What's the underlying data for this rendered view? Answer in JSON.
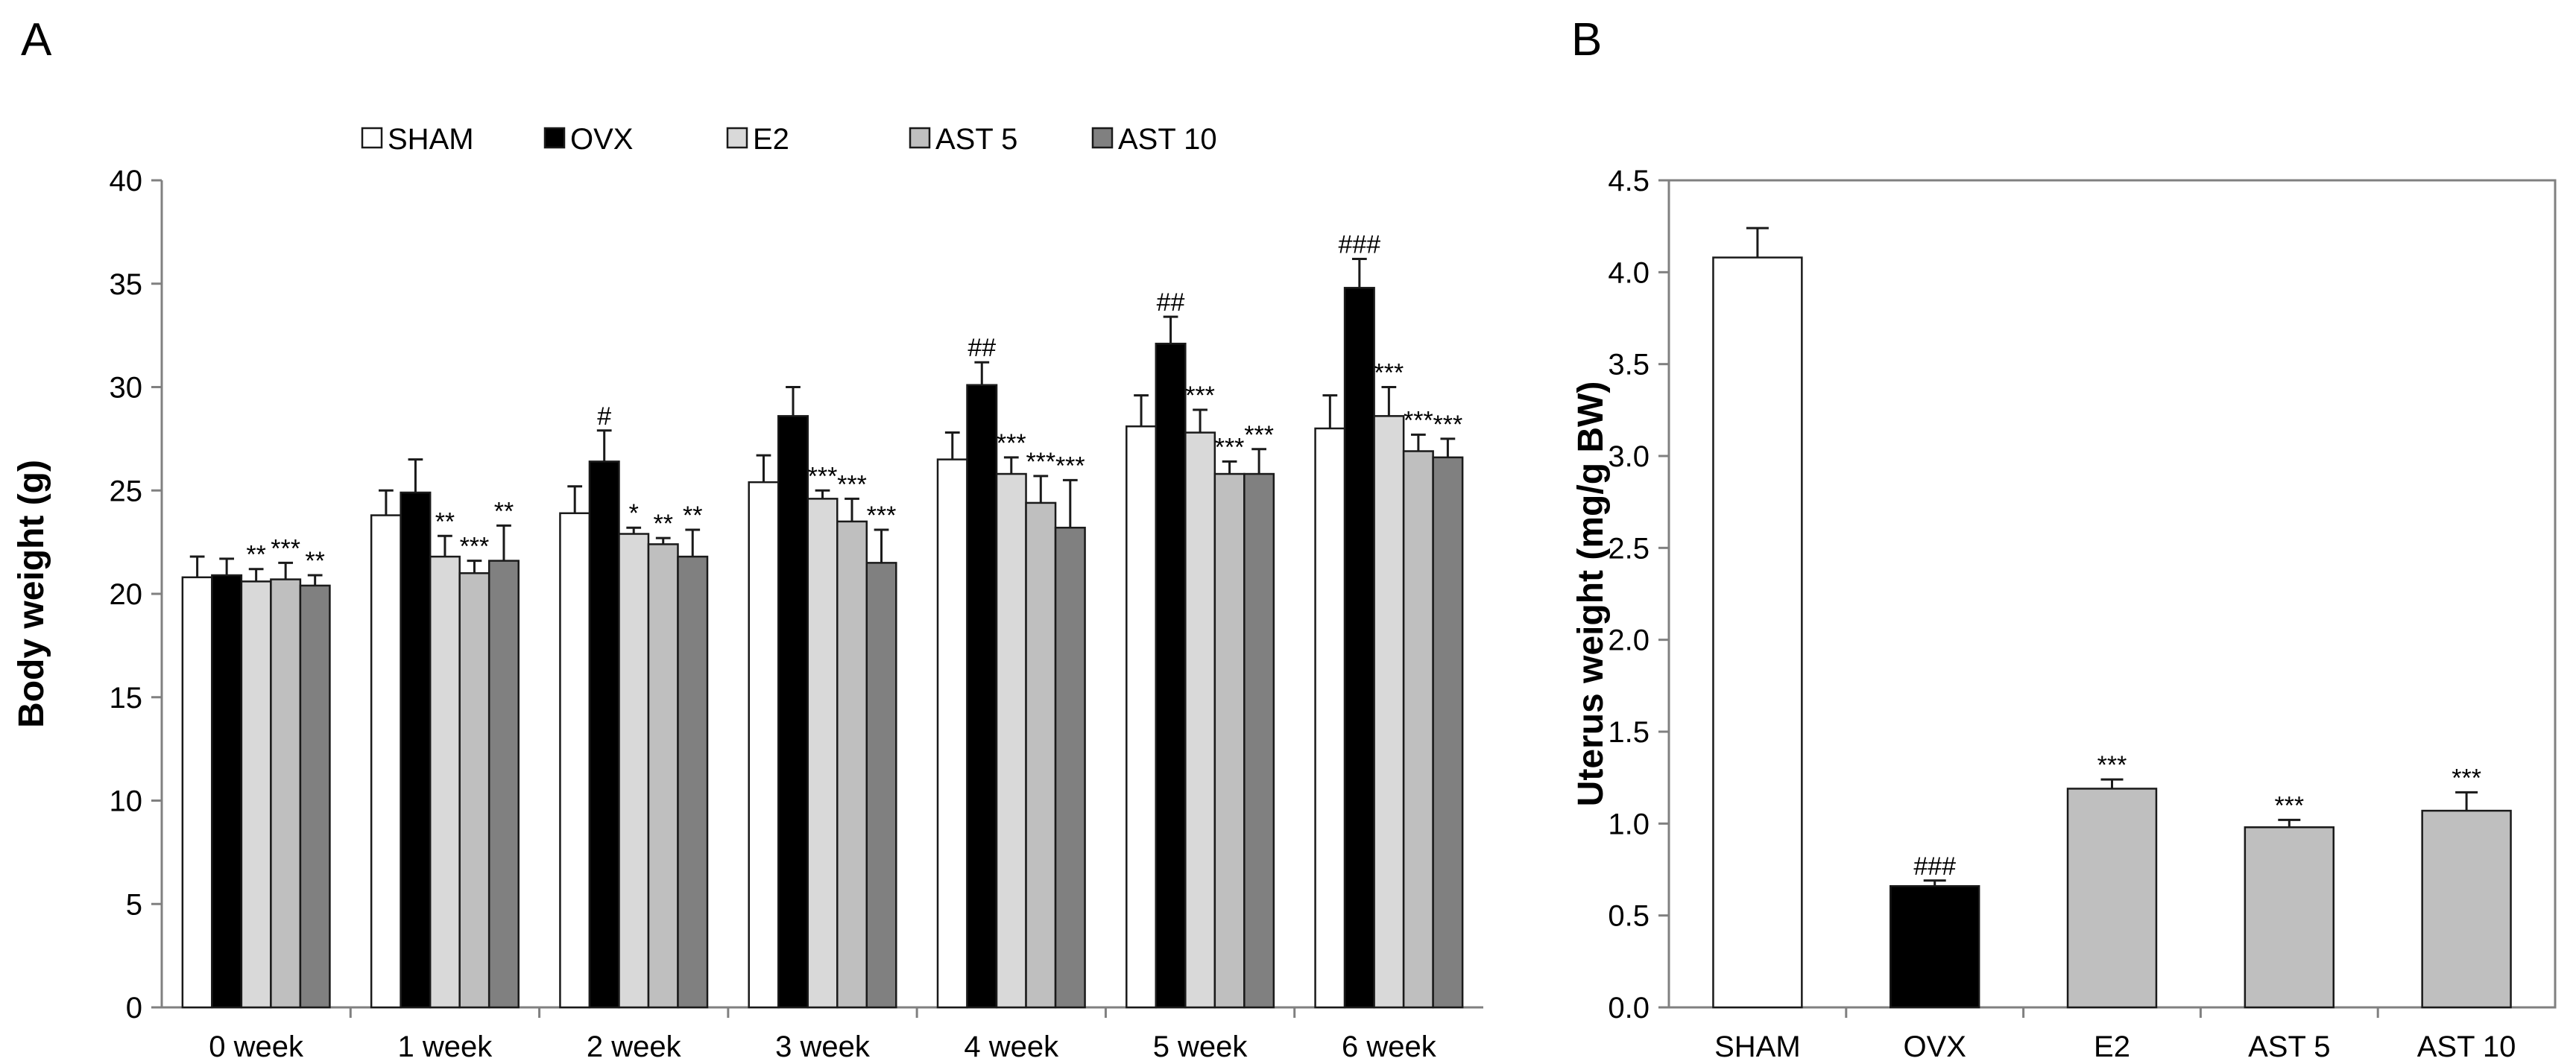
{
  "colors": {
    "SHAM": "#ffffff",
    "OVX": "#000000",
    "E2": "#d9d9d9",
    "AST 5": "#bfbfbf",
    "AST 10": "#808080",
    "axis": "#808080",
    "bar_edge": "#1a1a1a",
    "text": "#000000"
  },
  "chart_data": [
    {
      "panel_label": "A",
      "type": "bar",
      "title": "",
      "xlabel": "",
      "ylabel": "Body weight (g)",
      "ylim": [
        0,
        40
      ],
      "yticks": [
        "0",
        "5",
        "10",
        "15",
        "20",
        "25",
        "30",
        "35",
        "40"
      ],
      "grid": false,
      "legend_position": "top",
      "categories": [
        "0 week",
        "1 week",
        "2 week",
        "3 week",
        "4 week",
        "5 week",
        "6 week"
      ],
      "series": [
        {
          "name": "SHAM",
          "values": [
            20.8,
            23.8,
            23.9,
            25.4,
            26.5,
            28.1,
            28.0
          ],
          "errors": [
            1.0,
            1.2,
            1.3,
            1.3,
            1.3,
            1.5,
            1.6
          ],
          "annotations": [
            "",
            "",
            "",
            "",
            "",
            "",
            ""
          ]
        },
        {
          "name": "OVX",
          "values": [
            20.9,
            24.9,
            26.4,
            28.6,
            30.1,
            32.1,
            34.8
          ],
          "errors": [
            0.8,
            1.6,
            1.5,
            1.4,
            1.1,
            1.3,
            1.4
          ],
          "annotations": [
            "",
            "",
            "#",
            "",
            "##",
            "##",
            "###"
          ]
        },
        {
          "name": "E2",
          "values": [
            20.6,
            21.8,
            22.9,
            24.6,
            25.8,
            27.8,
            28.6
          ],
          "errors": [
            0.6,
            1.0,
            0.3,
            0.4,
            0.8,
            1.1,
            1.4
          ],
          "annotations": [
            "**",
            "**",
            "*",
            "***",
            "***",
            "***",
            "***"
          ]
        },
        {
          "name": "AST 5",
          "values": [
            20.7,
            21.0,
            22.4,
            23.5,
            24.4,
            25.8,
            26.9
          ],
          "errors": [
            0.8,
            0.6,
            0.3,
            1.1,
            1.3,
            0.6,
            0.8
          ],
          "annotations": [
            "***",
            "***",
            "**",
            "***",
            "***",
            "***",
            "***"
          ]
        },
        {
          "name": "AST 10",
          "values": [
            20.4,
            21.6,
            21.8,
            21.5,
            23.2,
            25.8,
            26.6
          ],
          "errors": [
            0.5,
            1.7,
            1.3,
            1.6,
            2.3,
            1.2,
            0.9
          ],
          "annotations": [
            "**",
            "**",
            "**",
            "***",
            "***",
            "***",
            "***"
          ]
        }
      ]
    },
    {
      "panel_label": "B",
      "type": "bar",
      "title": "",
      "xlabel": "",
      "ylabel": "Uterus weight (mg/g BW)",
      "ylim": [
        0,
        4.5
      ],
      "yticks": [
        "0.0",
        "0.5",
        "1.0",
        "1.5",
        "2.0",
        "2.5",
        "3.0",
        "3.5",
        "4.0",
        "4.5"
      ],
      "grid": false,
      "legend_position": "none",
      "categories": [
        "SHAM",
        "OVX",
        "E2",
        "AST 5",
        "AST 10"
      ],
      "values": [
        4.08,
        0.66,
        1.19,
        0.98,
        1.07
      ],
      "errors": [
        0.16,
        0.03,
        0.05,
        0.04,
        0.1
      ],
      "annotations": [
        "",
        "###",
        "***",
        "***",
        "***"
      ],
      "bar_colors": [
        "#ffffff",
        "#000000",
        "#bfbfbf",
        "#bfbfbf",
        "#bfbfbf"
      ]
    }
  ]
}
